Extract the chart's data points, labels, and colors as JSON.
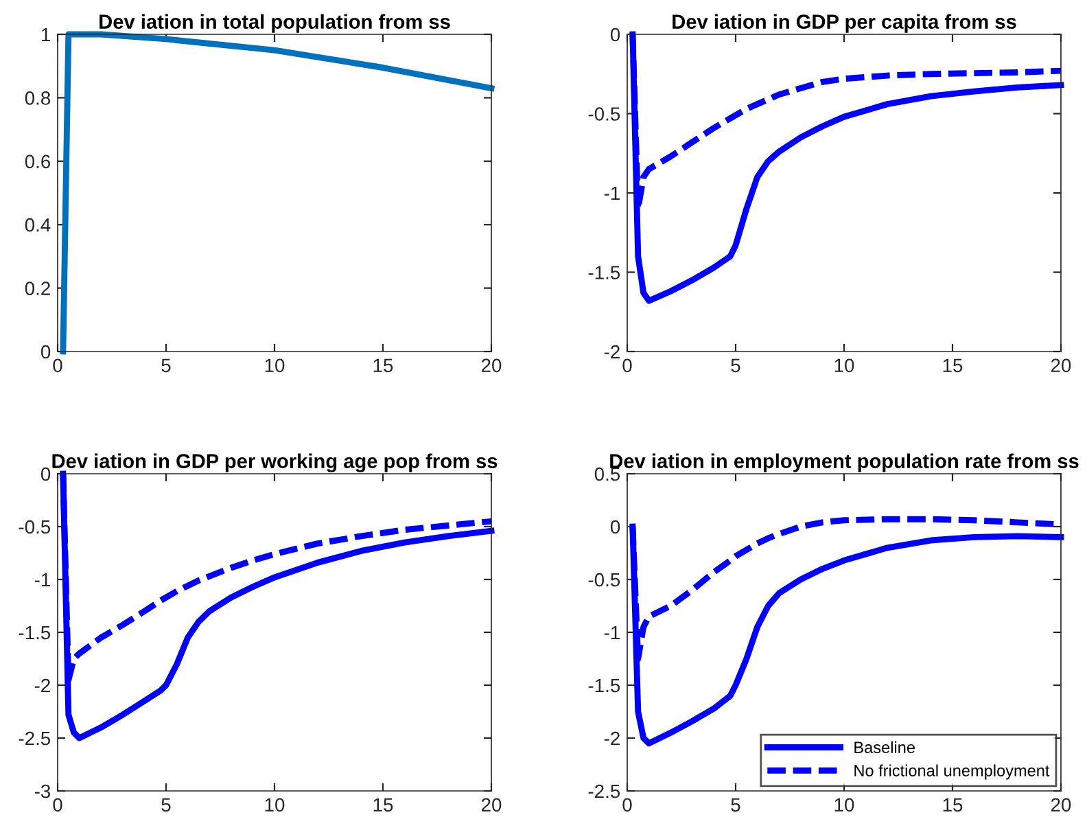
{
  "chart_data": [
    {
      "type": "line",
      "title": "Dev iation in total population from ss",
      "x": [
        0.25,
        0.5,
        2,
        5,
        10,
        15,
        20
      ],
      "series": [
        {
          "color": "#0072bd",
          "line_style": "solid",
          "values": [
            0,
            1,
            1.0,
            0.985,
            0.95,
            0.895,
            0.83
          ]
        }
      ],
      "xlim": [
        0,
        20
      ],
      "xticks": [
        0,
        5,
        10,
        15,
        20
      ],
      "ylim": [
        0,
        1
      ],
      "yticks": [
        0,
        0.2,
        0.4,
        0.6,
        0.8,
        1
      ],
      "grid": false,
      "legend": false
    },
    {
      "type": "line",
      "title": "Dev iation in GDP per capita from ss",
      "x": [
        0.25,
        0.5,
        0.75,
        1,
        2,
        3,
        4,
        4.75,
        5,
        5.5,
        6,
        6.5,
        7,
        8,
        9,
        10,
        12,
        14,
        16,
        18,
        20
      ],
      "series": [
        {
          "color": "#0000ff",
          "line_style": "solid",
          "values": [
            0,
            -1.4,
            -1.63,
            -1.68,
            -1.62,
            -1.55,
            -1.47,
            -1.4,
            -1.33,
            -1.1,
            -0.9,
            -0.8,
            -0.74,
            -0.65,
            -0.58,
            -0.52,
            -0.44,
            -0.39,
            -0.36,
            -0.335,
            -0.32
          ]
        },
        {
          "color": "#0000ff",
          "line_style": "dashed",
          "values": [
            0,
            -1.1,
            -0.9,
            -0.85,
            -0.77,
            -0.68,
            -0.59,
            -0.53,
            -0.51,
            -0.47,
            -0.44,
            -0.41,
            -0.38,
            -0.34,
            -0.3,
            -0.28,
            -0.26,
            -0.25,
            -0.245,
            -0.24,
            -0.23
          ]
        }
      ],
      "xlim": [
        0,
        20
      ],
      "xticks": [
        0,
        5,
        10,
        15,
        20
      ],
      "ylim": [
        -2,
        0
      ],
      "yticks": [
        -2,
        -1.5,
        -1,
        -0.5,
        0
      ],
      "grid": false,
      "legend": false
    },
    {
      "type": "line",
      "title": "Dev iation in GDP per working age pop from ss",
      "x": [
        0.25,
        0.5,
        0.75,
        1,
        2,
        3,
        4,
        4.75,
        5,
        5.5,
        6,
        6.5,
        7,
        8,
        9,
        10,
        12,
        14,
        16,
        18,
        20
      ],
      "series": [
        {
          "color": "#0000ff",
          "line_style": "solid",
          "values": [
            0,
            -2.28,
            -2.45,
            -2.5,
            -2.4,
            -2.28,
            -2.15,
            -2.05,
            -2.0,
            -1.8,
            -1.55,
            -1.4,
            -1.3,
            -1.17,
            -1.07,
            -0.98,
            -0.84,
            -0.73,
            -0.65,
            -0.59,
            -0.54
          ]
        },
        {
          "color": "#0000ff",
          "line_style": "dashed",
          "values": [
            0,
            -1.95,
            -1.75,
            -1.7,
            -1.55,
            -1.43,
            -1.3,
            -1.2,
            -1.17,
            -1.11,
            -1.06,
            -1.01,
            -0.97,
            -0.89,
            -0.82,
            -0.76,
            -0.66,
            -0.59,
            -0.53,
            -0.49,
            -0.45
          ]
        }
      ],
      "xlim": [
        0,
        20
      ],
      "xticks": [
        0,
        5,
        10,
        15,
        20
      ],
      "ylim": [
        -3,
        0
      ],
      "yticks": [
        -3,
        -2.5,
        -2,
        -1.5,
        -1,
        -0.5,
        0
      ],
      "grid": false,
      "legend": false
    },
    {
      "type": "line",
      "title": "Dev iation in employment population rate from ss",
      "x": [
        0.25,
        0.5,
        0.75,
        1,
        2,
        3,
        4,
        4.75,
        5,
        5.5,
        6,
        6.5,
        7,
        8,
        9,
        10,
        12,
        14,
        16,
        18,
        20
      ],
      "series": [
        {
          "name": "Baseline",
          "color": "#0000ff",
          "line_style": "solid",
          "values": [
            0,
            -1.75,
            -2.0,
            -2.05,
            -1.95,
            -1.84,
            -1.72,
            -1.6,
            -1.5,
            -1.25,
            -0.95,
            -0.75,
            -0.63,
            -0.5,
            -0.4,
            -0.32,
            -0.2,
            -0.13,
            -0.1,
            -0.09,
            -0.1
          ]
        },
        {
          "name": "No frictional unemployment",
          "color": "#0000ff",
          "line_style": "dashed",
          "values": [
            0,
            -1.25,
            -0.95,
            -0.85,
            -0.75,
            -0.6,
            -0.43,
            -0.32,
            -0.28,
            -0.22,
            -0.16,
            -0.11,
            -0.07,
            0.0,
            0.04,
            0.06,
            0.07,
            0.07,
            0.06,
            0.04,
            0.02
          ]
        }
      ],
      "xlim": [
        0,
        20
      ],
      "xticks": [
        0,
        5,
        10,
        15,
        20
      ],
      "ylim": [
        -2.5,
        0.5
      ],
      "yticks": [
        -2.5,
        -2,
        -1.5,
        -1,
        -0.5,
        0,
        0.5
      ],
      "grid": false,
      "legend": "bottom right"
    }
  ]
}
